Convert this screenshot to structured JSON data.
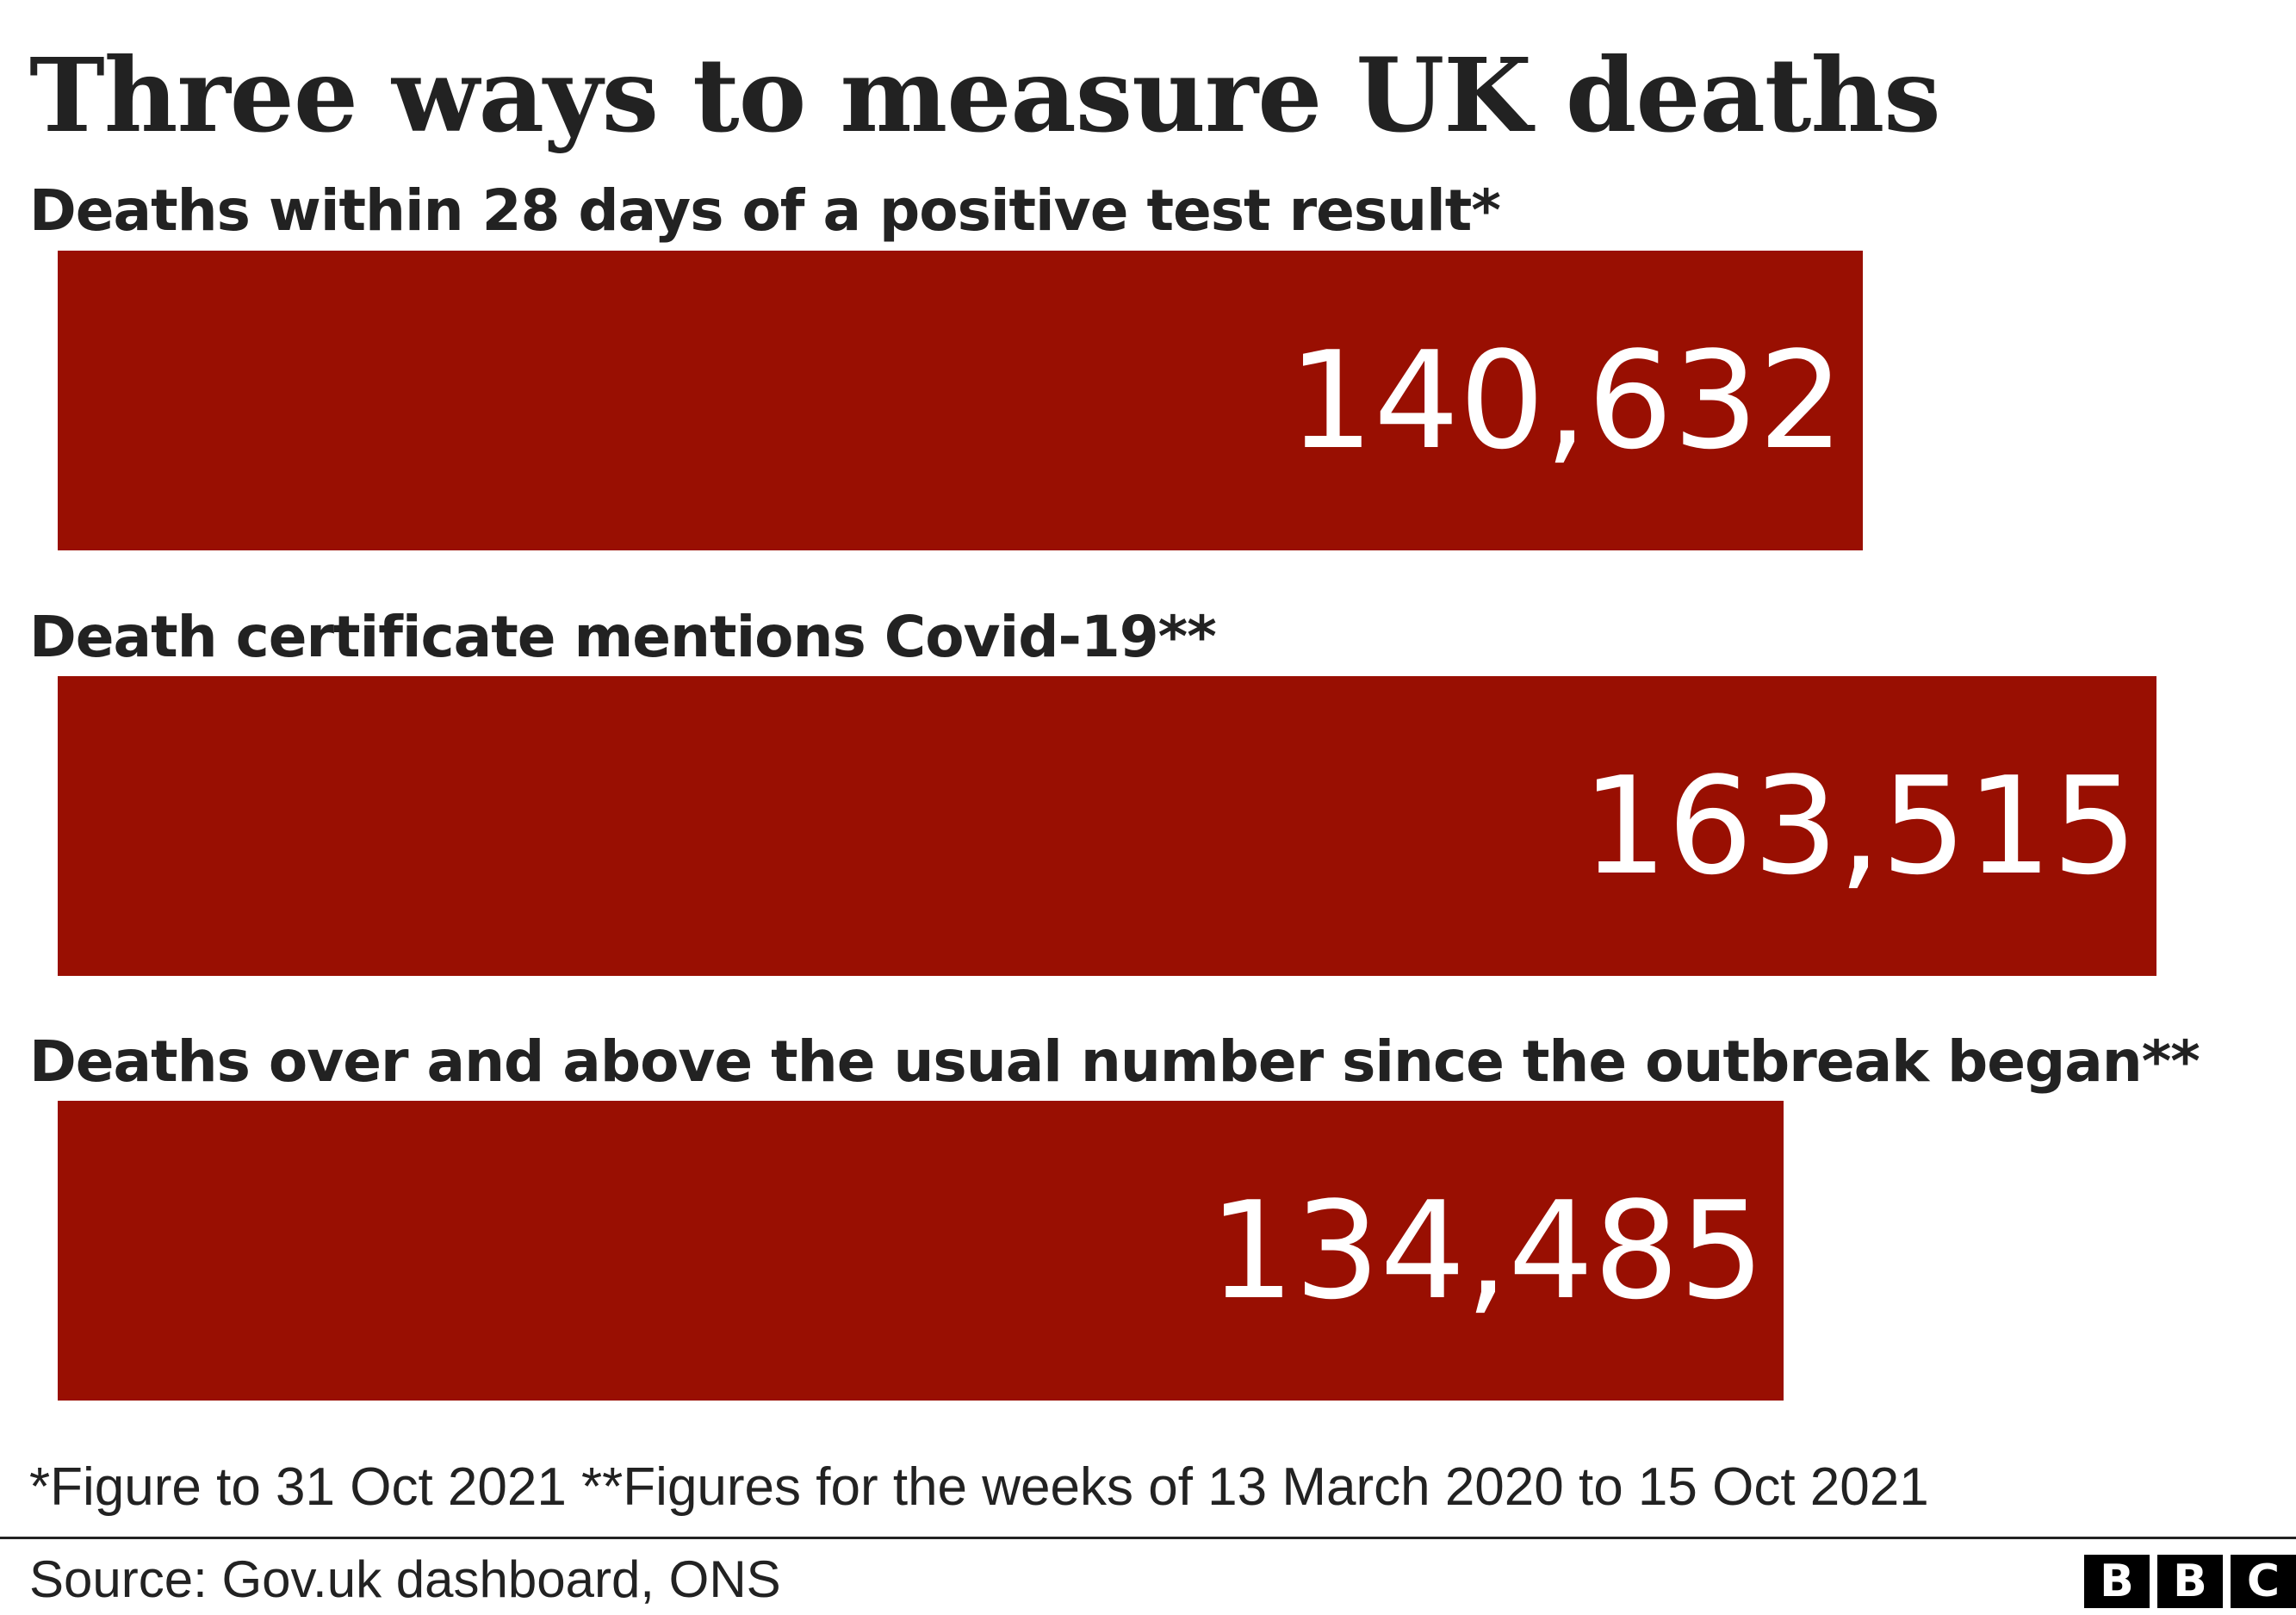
{
  "chart_data": {
    "type": "bar",
    "orientation": "horizontal",
    "title": "Three ways to measure UK deaths",
    "categories": [
      "Deaths within 28 days of a positive test result*",
      "Death certificate mentions Covid-19**",
      "Deaths over and above the usual number since the outbreak began**"
    ],
    "values": [
      140632,
      163515,
      134485
    ],
    "value_labels": [
      "140,632",
      "163,515",
      "134,485"
    ],
    "bar_color": "#990f02",
    "grid": false
  },
  "footnote": "*Figure to 31 Oct 2021 **Figures for the weeks of 13 March 2020 to 15 Oct 2021",
  "source": "Source: Gov.uk dashboard, ONS",
  "logo": [
    "B",
    "B",
    "C"
  ]
}
